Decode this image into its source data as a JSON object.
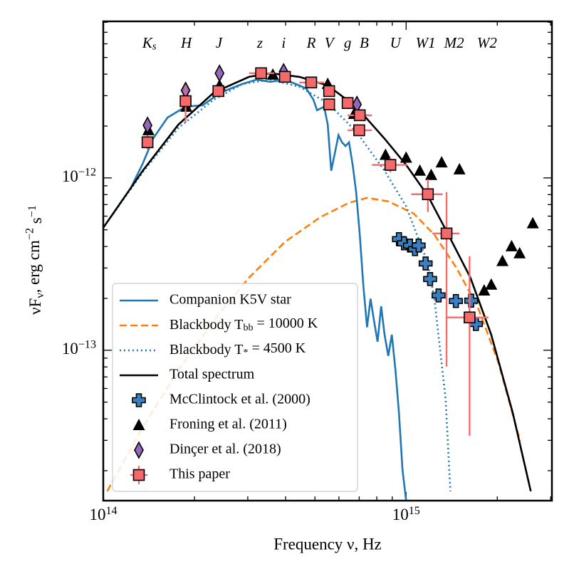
{
  "chart_data": {
    "type": "line",
    "xlabel": "Frequency ν, Hz",
    "ylabel": "νF_{ν}, erg cm^{−2} s^{−1}",
    "xscale": "log",
    "yscale": "log",
    "xlim": [
      100000000000000.0,
      3030000000000000.0
    ],
    "ylim": [
      1.34e-14,
      8.1e-12
    ],
    "xticks": [
      {
        "value": 100000000000000.0,
        "label": "10^{14}"
      },
      {
        "value": 1000000000000000.0,
        "label": "10^{15}"
      }
    ],
    "yticks": [
      {
        "value": 1e-13,
        "label": "10^{−13}"
      },
      {
        "value": 1e-12,
        "label": "10^{−12}"
      }
    ],
    "xminorticks": [
      200000000000000.0,
      300000000000000.0,
      400000000000000.0,
      500000000000000.0,
      600000000000000.0,
      700000000000000.0,
      800000000000000.0,
      900000000000000.0,
      2000000000000000.0,
      3000000000000000.0
    ],
    "yminorticks": [
      2e-14,
      3e-14,
      4e-14,
      5e-14,
      6e-14,
      7e-14,
      8e-14,
      9e-14,
      2e-13,
      3e-13,
      4e-13,
      5e-13,
      6e-13,
      7e-13,
      8e-13,
      9e-13,
      2e-12,
      3e-12,
      4e-12,
      5e-12,
      6e-12,
      7e-12,
      8e-12
    ],
    "legend": "lower left",
    "annotations": [
      {
        "text": "K_{s}",
        "x": 142000000000000.0
      },
      {
        "text": "H",
        "x": 188000000000000.0
      },
      {
        "text": "J",
        "x": 241000000000000.0
      },
      {
        "text": "z",
        "x": 329000000000000.0
      },
      {
        "text": "i",
        "x": 394000000000000.0
      },
      {
        "text": "R",
        "x": 486000000000000.0
      },
      {
        "text": "V",
        "x": 557000000000000.0
      },
      {
        "text": "g",
        "x": 641000000000000.0
      },
      {
        "text": "B",
        "x": 727000000000000.0
      },
      {
        "text": "U",
        "x": 922000000000000.0
      },
      {
        "text": "W1",
        "x": 1160000000000000.0
      },
      {
        "text": "M2",
        "x": 1440000000000000.0
      },
      {
        "text": "W2",
        "x": 1850000000000000.0
      }
    ],
    "series": [
      {
        "name": "Companion K5V star",
        "color": "#1f77b4",
        "dash": "solid",
        "x": [
          124000000000000.0,
          135000000000000.0,
          146000000000000.0,
          163000000000000.0,
          187000000000000.0,
          213000000000000.0,
          244000000000000.0,
          288000000000000.0,
          321000000000000.0,
          357000000000000.0,
          398000000000000.0,
          444000000000000.0,
          469000000000000.0,
          494000000000000.0,
          508000000000000.0,
          536000000000000.0,
          551000000000000.0,
          566000000000000.0,
          582000000000000.0,
          598000000000000.0,
          614000000000000.0,
          631000000000000.0,
          648000000000000.0,
          666000000000000.0,
          684000000000000.0,
          703000000000000.0,
          722000000000000.0,
          743000000000000.0,
          763000000000000.0,
          783000000000000.0,
          805000000000000.0,
          827000000000000.0,
          849000000000000.0,
          873000000000000.0,
          897000000000000.0,
          922000000000000.0,
          947000000000000.0,
          973000000000000.0,
          1000000000000000.0
        ],
        "y": [
          8.92e-13,
          1.21e-12,
          1.69e-12,
          2.24e-12,
          2.59e-12,
          2.64e-12,
          3.13e-12,
          3.51e-12,
          3.72e-12,
          3.61e-12,
          3.72e-12,
          3.44e-12,
          3.29e-12,
          2.85e-12,
          2.47e-12,
          2.59e-12,
          2.04e-12,
          1.1e-12,
          1.4e-12,
          1.77e-12,
          1.61e-12,
          1.53e-12,
          1.61e-12,
          1.19e-12,
          8.27e-13,
          4.67e-13,
          2.4e-13,
          1.36e-13,
          1.99e-13,
          1.49e-13,
          1.12e-13,
          1.8e-13,
          1.23e-13,
          9.27e-14,
          1.23e-13,
          7.66e-14,
          4.33e-14,
          2.02e-14,
          1.34e-14
        ]
      },
      {
        "name": "Blackbody T_{bb} = 10000 K",
        "color": "#ff7f0e",
        "dash": "dashed",
        "x": [
          103000000000000.0,
          135000000000000.0,
          177000000000000.0,
          232000000000000.0,
          303000000000000.0,
          398000000000000.0,
          522000000000000.0,
          648000000000000.0,
          743000000000000.0,
          874000000000000.0,
          1060000000000000.0,
          1240000000000000.0,
          1460000000000000.0,
          1720000000000000.0,
          2020000000000000.0,
          2380000000000000.0
        ],
        "y": [
          1.52e-14,
          3.58e-14,
          7.66e-14,
          1.49e-13,
          2.64e-13,
          4.25e-13,
          5.93e-13,
          7.17e-13,
          7.66e-13,
          7.31e-13,
          6.21e-13,
          4.67e-13,
          3.04e-13,
          1.8e-13,
          8.43e-14,
          2.96e-14
        ]
      },
      {
        "name": "Blackbody T_{*} = 4500 K",
        "color": "#1f77b4",
        "dash": "dotted",
        "x": [
          100000000000000.0,
          135000000000000.0,
          177000000000000.0,
          232000000000000.0,
          288000000000000.0,
          357000000000000.0,
          444000000000000.0,
          551000000000000.0,
          684000000000000.0,
          849000000000000.0,
          1000000000000000.0,
          1180000000000000.0,
          1240000000000000.0,
          1350000000000000.0,
          1400000000000000.0
        ],
        "y": [
          5.14e-13,
          1.08e-12,
          1.95e-12,
          2.85e-12,
          3.51e-12,
          3.72e-12,
          3.38e-12,
          2.72e-12,
          1.86e-12,
          1.1e-12,
          6.84e-13,
          3.19e-13,
          1.99e-13,
          5.24e-14,
          1.52e-14
        ]
      },
      {
        "name": "Total spectrum",
        "color": "#000000",
        "dash": "solid",
        "x": [
          100000000000000.0,
          135000000000000.0,
          177000000000000.0,
          232000000000000.0,
          303000000000000.0,
          357000000000000.0,
          444000000000000.0,
          551000000000000.0,
          684000000000000.0,
          849000000000000.0,
          1000000000000000.0,
          1180000000000000.0,
          1380000000000000.0,
          1630000000000000.0,
          1910000000000000.0,
          2250000000000000.0,
          2580000000000000.0
        ],
        "y": [
          5.14e-13,
          1.1e-12,
          2.04e-12,
          3.13e-12,
          3.86e-12,
          4.05e-12,
          3.86e-12,
          3.44e-12,
          2.59e-12,
          1.69e-12,
          1.19e-12,
          7.88e-13,
          4.67e-13,
          2.64e-13,
          1.23e-13,
          4.33e-14,
          1.52e-14
        ]
      },
      {
        "name": "McClintock et al. (2000)",
        "color": "#3a7fc1",
        "marker": "plus",
        "x": [
          947000000000000.0,
          984000000000000.0,
          1030000000000000.0,
          1070000000000000.0,
          1100000000000000.0,
          1160000000000000.0,
          1200000000000000.0,
          1280000000000000.0,
          1460000000000000.0,
          1640000000000000.0,
          1700000000000000.0
        ],
        "y": [
          4.41e-13,
          4.17e-13,
          4.05e-13,
          3.86e-13,
          4.05e-13,
          3.19e-13,
          2.59e-13,
          2.08e-13,
          1.93e-13,
          1.94e-13,
          1.42e-13
        ]
      },
      {
        "name": "Froning et al. (2011)",
        "color": "#000000",
        "marker": "triangle",
        "x": [
          141000000000000.0,
          188000000000000.0,
          242000000000000.0,
          363000000000000.0,
          398000000000000.0,
          551000000000000.0,
          673000000000000.0,
          855000000000000.0,
          1000000000000000.0,
          1110000000000000.0,
          1210000000000000.0,
          1310000000000000.0,
          1500000000000000.0,
          1810000000000000.0,
          1910000000000000.0,
          2080000000000000.0,
          2230000000000000.0,
          2370000000000000.0,
          2620000000000000.0
        ],
        "y": [
          1.89e-12,
          2.59e-12,
          3.44e-12,
          3.97e-12,
          4.05e-12,
          3.51e-12,
          2.35e-12,
          1.36e-12,
          1.31e-12,
          1.1e-12,
          1.04e-12,
          1.23e-12,
          1.12e-12,
          2.22e-13,
          2.4e-13,
          3.29e-13,
          4.01e-13,
          3.65e-13,
          5.45e-13
        ]
      },
      {
        "name": "Dinçer et al. (2018)",
        "color": "#9467bd",
        "marker": "diamond",
        "x": [
          140000000000000.0,
          187000000000000.0,
          242000000000000.0,
          394000000000000.0,
          688000000000000.0
        ],
        "y": [
          2.02e-12,
          3.22e-12,
          4.05e-12,
          4.13e-12,
          2.67e-12
        ]
      },
      {
        "name": "This paper",
        "color": "#f46a6a",
        "marker": "square",
        "errcolor": "#f26d6d",
        "x": [
          140000000000000.0,
          187000000000000.0,
          240000000000000.0,
          332000000000000.0,
          398000000000000.0,
          486000000000000.0,
          557000000000000.0,
          557000000000000.0,
          641000000000000.0,
          703000000000000.0,
          700000000000000.0,
          887000000000000.0,
          1180000000000000.0,
          1360000000000000.0,
          1620000000000000.0
        ],
        "y": [
          1.61e-12,
          2.79e-12,
          3.19e-12,
          4.05e-12,
          3.86e-12,
          3.58e-12,
          3.19e-12,
          2.67e-12,
          2.72e-12,
          2.31e-12,
          1.89e-12,
          1.19e-12,
          8.04e-13,
          4.76e-13,
          1.55e-13
        ],
        "xlow": [
          null,
          null,
          null,
          303000000000000.0,
          null,
          444000000000000.0,
          null,
          null,
          null,
          641000000000000.0,
          641000000000000.0,
          771000000000000.0,
          1040000000000000.0,
          1220000000000000.0,
          1350000000000000.0
        ],
        "xhigh": [
          null,
          null,
          null,
          367000000000000.0,
          null,
          536000000000000.0,
          null,
          null,
          null,
          771000000000000.0,
          771000000000000.0,
          1010000000000000.0,
          1320000000000000.0,
          1500000000000000.0,
          1870000000000000.0
        ],
        "ylow": [
          1.46e-12,
          2.1e-12,
          null,
          null,
          null,
          null,
          null,
          null,
          null,
          null,
          null,
          1.08e-12,
          6.34e-13,
          8.04e-14,
          3.19e-14
        ],
        "yhigh": [
          1.77e-12,
          3.44e-12,
          null,
          null,
          null,
          null,
          null,
          null,
          null,
          null,
          null,
          1.31e-12,
          9.81e-13,
          8.27e-13,
          3.51e-13
        ]
      }
    ]
  }
}
